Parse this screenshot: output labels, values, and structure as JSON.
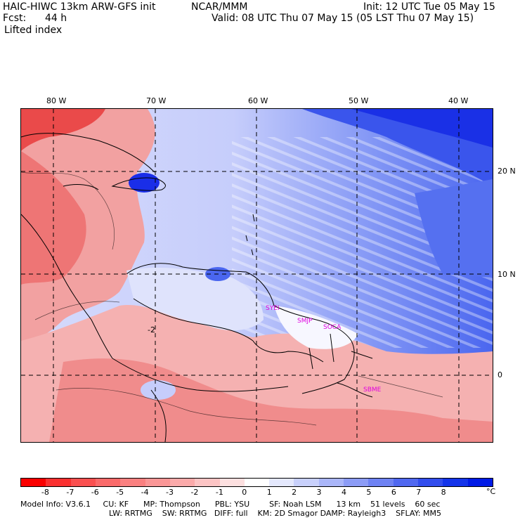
{
  "header": {
    "title": "HAIC-HIWC 13km ARW-GFS init",
    "org": "NCAR/MMM",
    "init": "Init: 12 UTC Tue 05 May 15",
    "fcst_label": "Fcst:",
    "fcst_value": "44 h",
    "valid": "Valid: 08 UTC Thu 07 May 15 (05 LST Thu 07 May 15)",
    "field": "Lifted index"
  },
  "map": {
    "lon_labels": [
      "80 W",
      "70 W",
      "60 W",
      "50 W",
      "40 W"
    ],
    "lat_labels": [
      "20 N",
      "10 N",
      "0"
    ],
    "stations": [
      "SYEI",
      "SMJP",
      "SOCA",
      "SBME"
    ],
    "contour_label": "-2",
    "colors": {
      "ocean_blue": "#4a66ef",
      "deep_blue": "#1a2ee8",
      "light_blue": "#c6cdfb",
      "land_red": "#f2a1a1",
      "strong_red": "#ea4a4a",
      "station": "#e000e0"
    }
  },
  "colorbar": {
    "ticks": [
      "-8",
      "-7",
      "-6",
      "-5",
      "-4",
      "-3",
      "-2",
      "-1",
      "0",
      "1",
      "2",
      "3",
      "4",
      "5",
      "6",
      "7",
      "8"
    ],
    "unit": "°C",
    "colors": [
      "#fa0000",
      "#fa3030",
      "#fa5050",
      "#fa6a6a",
      "#fa8080",
      "#fa9696",
      "#fbaaaa",
      "#fcc4c4",
      "#fde0e0",
      "#ffffff",
      "#e4e8fd",
      "#c8d0fb",
      "#aab6f9",
      "#8c9cf6",
      "#6e82f3",
      "#5068f0",
      "#324ded",
      "#1434ea",
      "#001ae6"
    ]
  },
  "footer": {
    "line1": "Model Info: V3.6.1     CU: KF      MP: Thompson      PBL: YSU        SF: Noah LSM      13 km    51 levels    60 sec",
    "line2": "LW: RRTMG    SW: RRTMG   DIFF: full    KM: 2D Smagor DAMP: Rayleigh3    SFLAY: MM5"
  }
}
